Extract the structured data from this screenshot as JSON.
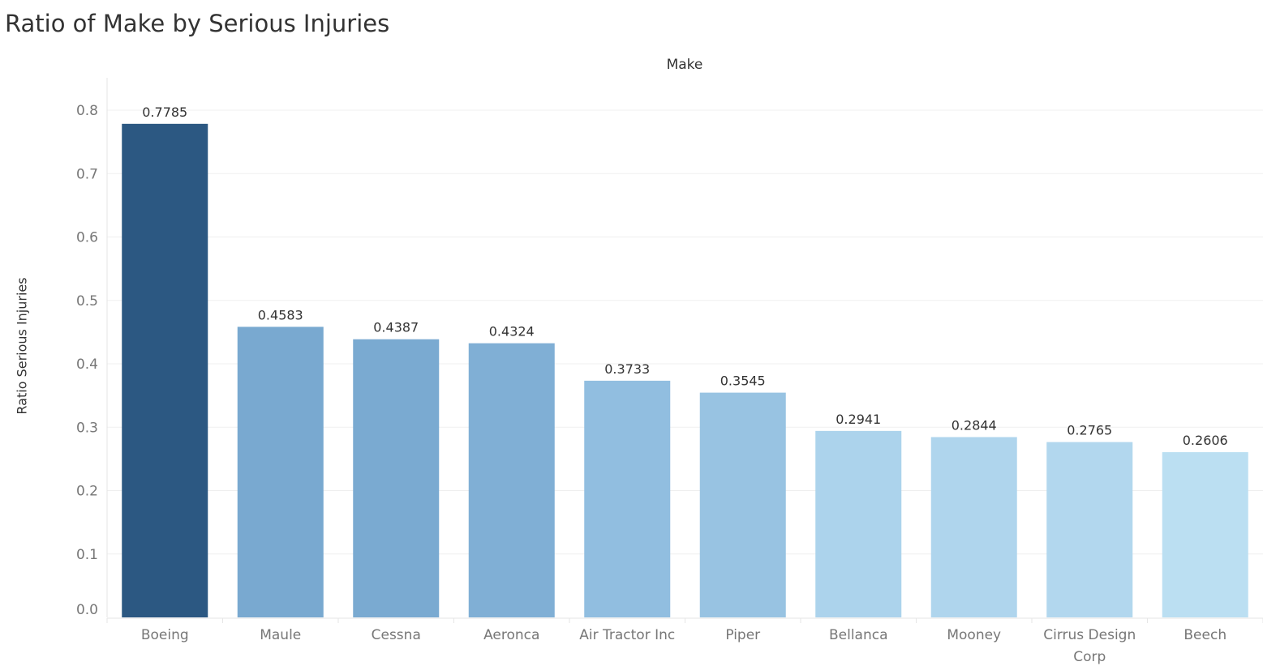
{
  "page": {
    "title": "Ratio of Make by Serious Injuries"
  },
  "chart_data": {
    "type": "bar",
    "title": "Ratio of Make by Serious Injuries",
    "xlabel": "Make",
    "ylabel": "Ratio Serious Injuries",
    "categories": [
      "Boeing",
      "Maule",
      "Cessna",
      "Aeronca",
      "Air Tractor Inc",
      "Piper",
      "Bellanca",
      "Mooney",
      "Cirrus Design Corp",
      "Beech"
    ],
    "category_lines": [
      [
        "Boeing"
      ],
      [
        "Maule"
      ],
      [
        "Cessna"
      ],
      [
        "Aeronca"
      ],
      [
        "Air Tractor Inc"
      ],
      [
        "Piper"
      ],
      [
        "Bellanca"
      ],
      [
        "Mooney"
      ],
      [
        "Cirrus Design",
        "Corp"
      ],
      [
        "Beech"
      ]
    ],
    "values": [
      0.7785,
      0.4583,
      0.4387,
      0.4324,
      0.3733,
      0.3545,
      0.2941,
      0.2844,
      0.2765,
      0.2606
    ],
    "data_labels": [
      "0.7785",
      "0.4583",
      "0.4387",
      "0.4324",
      "0.3733",
      "0.3545",
      "0.2941",
      "0.2844",
      "0.2765",
      "0.2606"
    ],
    "bar_colors": [
      "#2c5882",
      "#79a9d0",
      "#7aaad1",
      "#80afd5",
      "#91bee0",
      "#98c3e2",
      "#acd3ec",
      "#afd5ed",
      "#b2d7ee",
      "#bbdff2"
    ],
    "ylim": [
      0,
      0.8
    ],
    "yticks": [
      0.0,
      0.1,
      0.2,
      0.3,
      0.4,
      0.5,
      0.6,
      0.7,
      0.8
    ],
    "ytick_labels": [
      "0.0",
      "0.1",
      "0.2",
      "0.3",
      "0.4",
      "0.5",
      "0.6",
      "0.7",
      "0.8"
    ],
    "grid": true,
    "legend": "none"
  }
}
